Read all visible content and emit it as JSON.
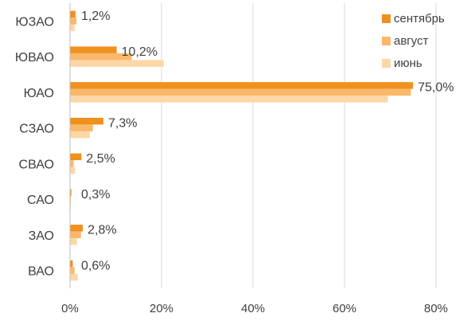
{
  "chart_data": {
    "type": "bar",
    "orientation": "horizontal",
    "categories": [
      "ЮЗАО",
      "ЮВАО",
      "ЮАО",
      "СЗАО",
      "СВАО",
      "САО",
      "ЗАО",
      "ВАО"
    ],
    "series": [
      {
        "name": "сентябрь",
        "color": "#f0901e",
        "values": [
          1.2,
          10.2,
          75.0,
          7.3,
          2.5,
          0.3,
          2.8,
          0.6
        ]
      },
      {
        "name": "август",
        "color": "#fab86a",
        "values": [
          1.4,
          13.5,
          74.5,
          5.0,
          0.8,
          0.2,
          2.4,
          1.0
        ]
      },
      {
        "name": "июнь",
        "color": "#fdd7a6",
        "values": [
          1.0,
          20.5,
          69.5,
          4.3,
          1.1,
          0.2,
          1.5,
          1.7
        ]
      }
    ],
    "data_labels": [
      "1,2%",
      "10,2%",
      "75,0%",
      "7,3%",
      "2,5%",
      "0,3%",
      "2,8%",
      "0,6%"
    ],
    "xlim": [
      0,
      80
    ],
    "x_ticks": [
      0,
      20,
      40,
      60,
      80
    ],
    "x_tick_labels": [
      "0%",
      "20%",
      "40%",
      "60%",
      "80%"
    ],
    "title": "",
    "xlabel": "",
    "ylabel": "",
    "grid": true,
    "legend_position": "top-right"
  }
}
